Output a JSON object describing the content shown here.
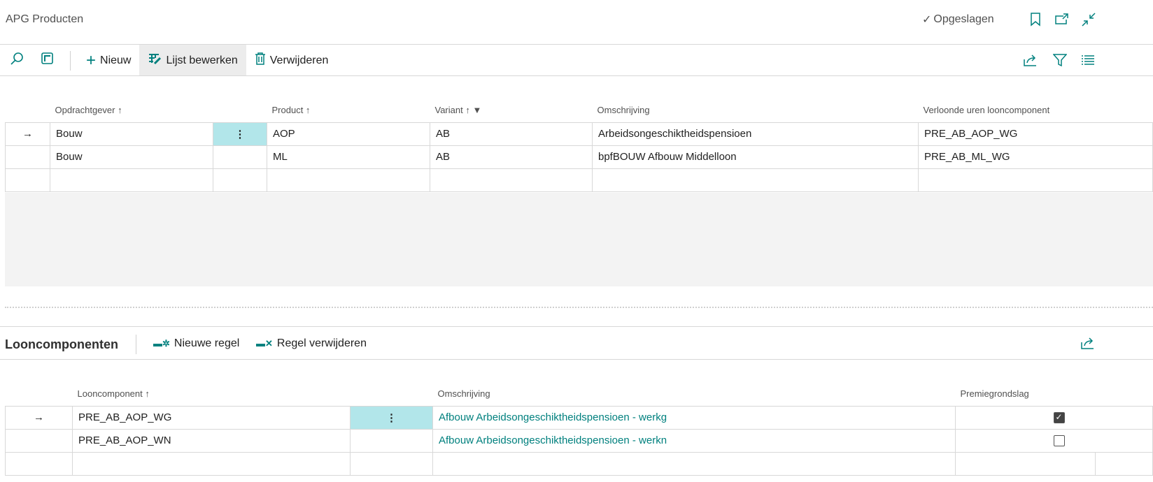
{
  "page": {
    "title": "APG Producten",
    "status": "Opgeslagen"
  },
  "toolbar": {
    "new": "Nieuw",
    "edit_list": "Lijst bewerken",
    "delete": "Verwijderen"
  },
  "main_table": {
    "headers": [
      "Opdrachtgever",
      "Product",
      "Variant",
      "Omschrijving",
      "Verloonde uren looncomponent"
    ],
    "rows": [
      {
        "opdrachtgever": "Bouw",
        "product": "AOP",
        "variant": "AB",
        "omschrijving": "Arbeidsongeschiktheidspensioen",
        "looncomponent": "PRE_AB_AOP_WG"
      },
      {
        "opdrachtgever": "Bouw",
        "product": "ML",
        "variant": "AB",
        "omschrijving": "bpfBOUW Afbouw Middelloon",
        "looncomponent": "PRE_AB_ML_WG"
      }
    ]
  },
  "sub": {
    "title": "Looncomponenten",
    "new_line": "Nieuwe regel",
    "delete_line": "Regel verwijderen",
    "headers": [
      "Looncomponent",
      "Omschrijving",
      "Premiegrondslag"
    ],
    "rows": [
      {
        "looncomponent": "PRE_AB_AOP_WG",
        "omschrijving": "Afbouw Arbeidsongeschiktheidspensioen - werkg",
        "premiegrondslag": true
      },
      {
        "looncomponent": "PRE_AB_AOP_WN",
        "omschrijving": "Afbouw Arbeidsongeschiktheidspensioen - werkn",
        "premiegrondslag": false
      }
    ]
  },
  "colors": {
    "accent": "#00807e",
    "selected_cell": "#b2e6ea"
  }
}
